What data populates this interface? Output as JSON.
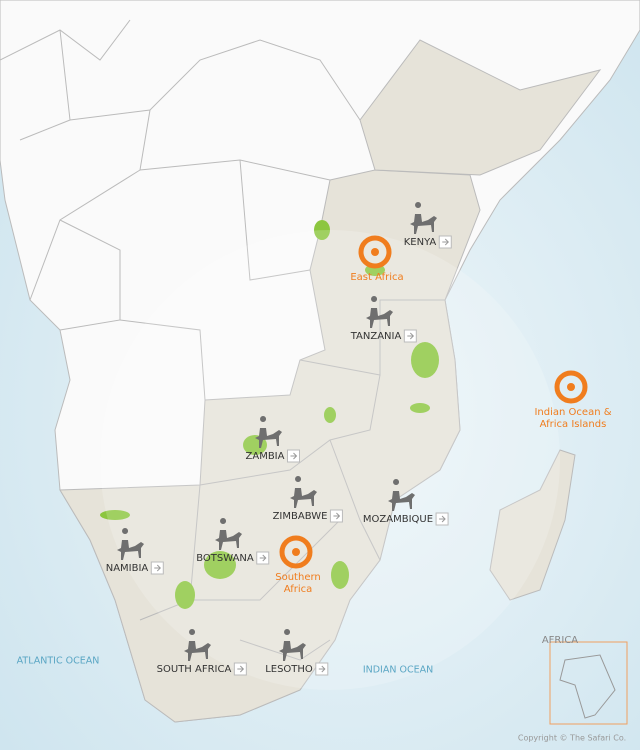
{
  "regions": [
    {
      "lines": [
        "East Africa"
      ]
    },
    {
      "lines": [
        "Southern",
        "Africa"
      ]
    },
    {
      "lines": [
        "Indian Ocean &",
        "Africa Islands"
      ]
    }
  ],
  "countries": [
    {
      "label": "KENYA"
    },
    {
      "label": "TANZANIA"
    },
    {
      "label": "ZAMBIA"
    },
    {
      "label": "ZIMBABWE"
    },
    {
      "label": "MOZAMBIQUE"
    },
    {
      "label": "BOTSWANA"
    },
    {
      "label": "NAMIBIA"
    },
    {
      "label": "SOUTH AFRICA"
    },
    {
      "label": "LESOTHO"
    }
  ],
  "oceans": [
    {
      "label": "ATLANTIC OCEAN"
    },
    {
      "label": "INDIAN OCEAN"
    }
  ],
  "inset": {
    "label": "AFRICA"
  },
  "copyright": "Copyright © The Safari Co."
}
